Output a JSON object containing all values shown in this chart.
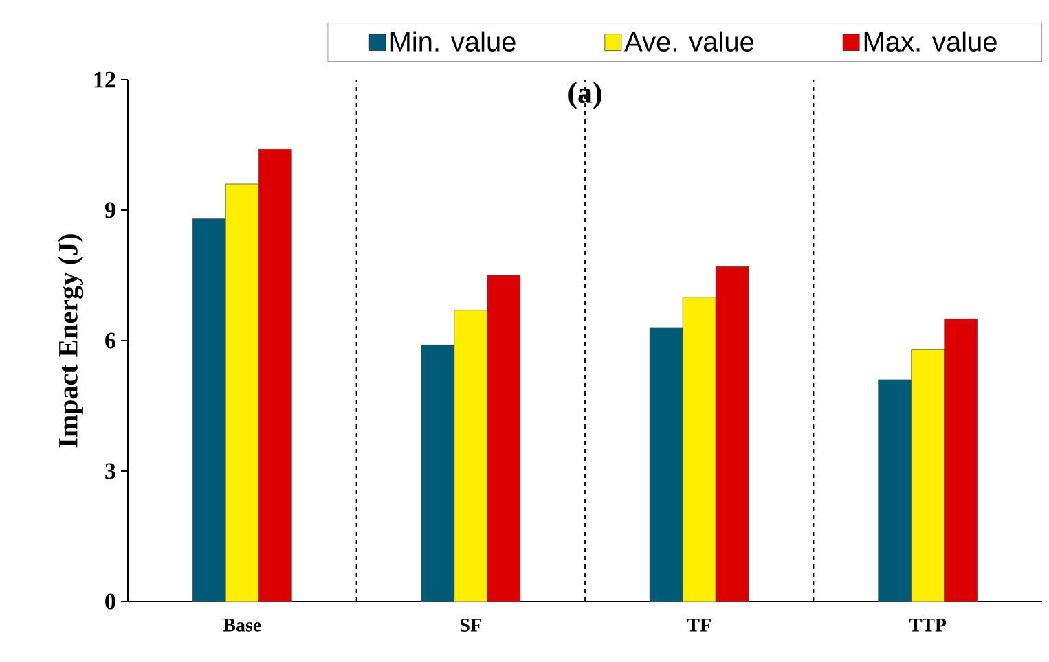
{
  "chart_data": {
    "type": "bar",
    "title": "(a)",
    "ylabel": "Impact Energy (J)",
    "categories": [
      "Base",
      "SF",
      "TF",
      "TTP"
    ],
    "series": [
      {
        "name": "Min. value",
        "color": "#005a78",
        "values": [
          8.8,
          5.9,
          6.3,
          5.1
        ]
      },
      {
        "name": "Ave. value",
        "color": "#ffee00",
        "values": [
          9.6,
          6.7,
          7.0,
          5.8
        ]
      },
      {
        "name": "Max. value",
        "color": "#dd0000",
        "values": [
          10.4,
          7.5,
          7.7,
          6.5
        ]
      }
    ],
    "ylim": [
      0,
      12
    ],
    "yticks": [
      0,
      3,
      6,
      9,
      12
    ],
    "grid": "x",
    "legend": "top"
  }
}
